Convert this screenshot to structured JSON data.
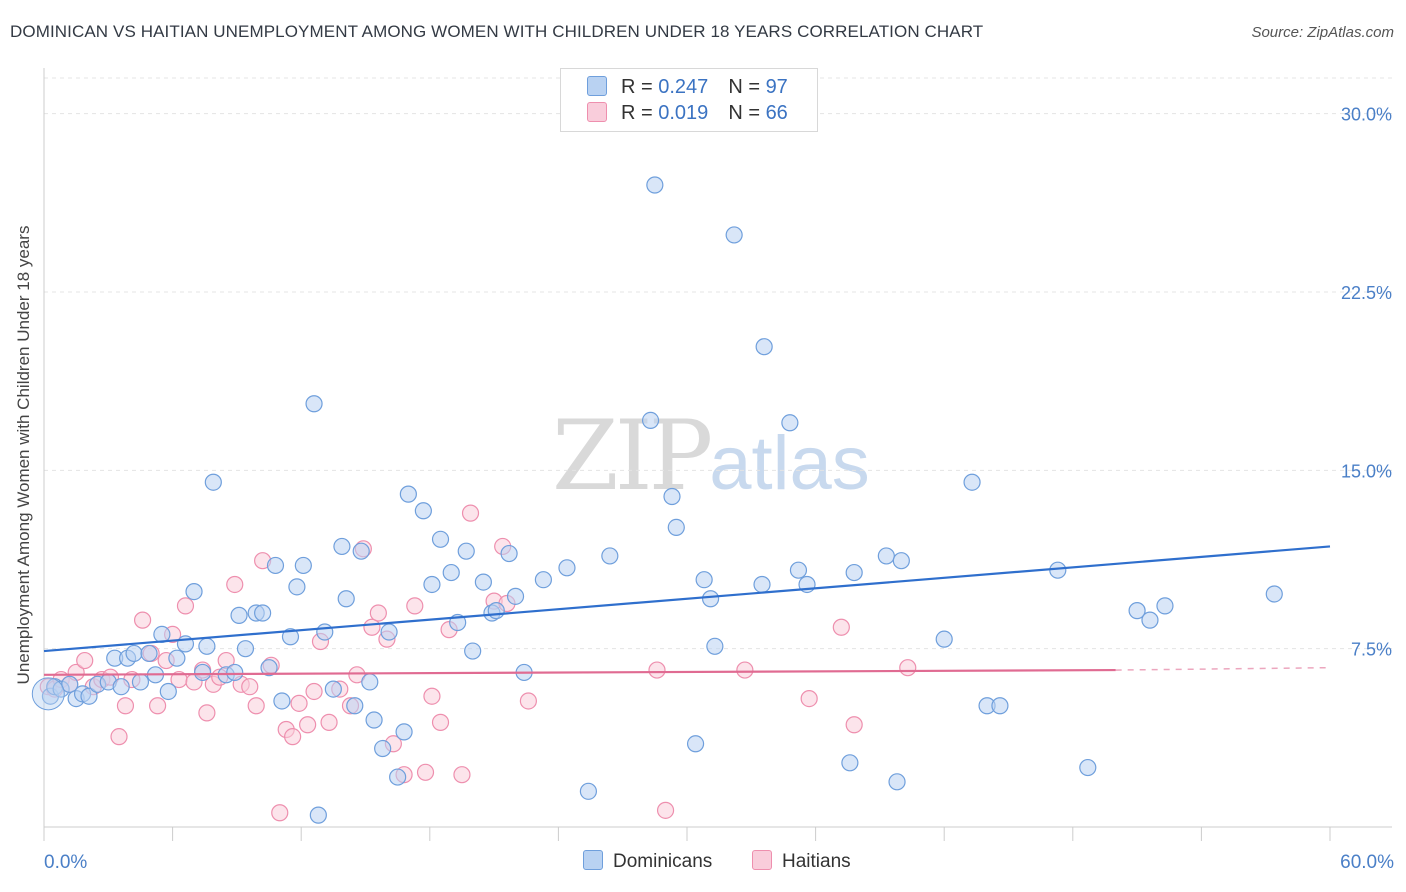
{
  "title": "DOMINICAN VS HAITIAN UNEMPLOYMENT AMONG WOMEN WITH CHILDREN UNDER 18 YEARS CORRELATION CHART",
  "source": "Source: ZipAtlas.com",
  "watermark": {
    "part1": "ZIP",
    "part2": "atlas"
  },
  "legend": {
    "rows": [
      {
        "r_label": "R = ",
        "r_value": "0.247",
        "n_label": "N = ",
        "n_value": "97",
        "color": "#a9c8ef"
      },
      {
        "r_label": "R = ",
        "r_value": "0.019",
        "n_label": "N = ",
        "n_value": "66",
        "color": "#f7b8cb"
      }
    ]
  },
  "bottom_legend": {
    "dominicans": "Dominicans",
    "haitians": "Haitians"
  },
  "chart_data": {
    "type": "scatter",
    "title": "DOMINICAN VS HAITIAN UNEMPLOYMENT AMONG WOMEN WITH CHILDREN UNDER 18 YEARS CORRELATION CHART",
    "xlabel": "",
    "ylabel": "Unemployment Among Women with Children Under 18 years",
    "xlim": [
      0,
      60
    ],
    "ylim": [
      0,
      31.5
    ],
    "x_tick_labels": [
      "0.0%",
      "60.0%"
    ],
    "y_ticks": [
      7.5,
      15.0,
      22.5,
      30.0
    ],
    "y_tick_labels": [
      "7.5%",
      "15.0%",
      "22.5%",
      "30.0%"
    ],
    "grid": true,
    "legend_position": "top-center",
    "colors": {
      "dominicans": "#6f9fdc",
      "dominicans_fill": "#b9d2f2",
      "haitians": "#ee8fae",
      "haitians_fill": "#f9cddb",
      "dom_line": "#2f6fcd",
      "hai_line": "#e06b92"
    },
    "series": [
      {
        "name": "Dominicans",
        "trend": {
          "x": [
            0,
            60
          ],
          "y": [
            7.4,
            11.8
          ]
        },
        "points": [
          [
            0.3,
            5.5
          ],
          [
            0.5,
            5.9
          ],
          [
            0.8,
            5.8
          ],
          [
            1.2,
            6.0
          ],
          [
            1.5,
            5.4
          ],
          [
            1.8,
            5.6
          ],
          [
            2.1,
            5.5
          ],
          [
            2.5,
            6.0
          ],
          [
            3.0,
            6.1
          ],
          [
            3.3,
            7.1
          ],
          [
            3.6,
            5.9
          ],
          [
            3.9,
            7.1
          ],
          [
            4.2,
            7.3
          ],
          [
            4.5,
            6.1
          ],
          [
            4.9,
            7.3
          ],
          [
            5.2,
            6.4
          ],
          [
            5.5,
            8.1
          ],
          [
            5.8,
            5.7
          ],
          [
            6.2,
            7.1
          ],
          [
            6.6,
            7.7
          ],
          [
            7.0,
            9.9
          ],
          [
            7.4,
            6.5
          ],
          [
            7.6,
            7.6
          ],
          [
            7.9,
            14.5
          ],
          [
            8.5,
            6.4
          ],
          [
            8.9,
            6.5
          ],
          [
            9.1,
            8.9
          ],
          [
            9.4,
            7.5
          ],
          [
            9.9,
            9.0
          ],
          [
            10.2,
            9.0
          ],
          [
            10.5,
            6.7
          ],
          [
            10.8,
            11.0
          ],
          [
            11.1,
            5.3
          ],
          [
            11.5,
            8.0
          ],
          [
            11.8,
            10.1
          ],
          [
            12.1,
            11.0
          ],
          [
            12.6,
            17.8
          ],
          [
            12.8,
            0.5
          ],
          [
            13.1,
            8.2
          ],
          [
            13.5,
            5.8
          ],
          [
            13.9,
            11.8
          ],
          [
            14.1,
            9.6
          ],
          [
            14.5,
            5.1
          ],
          [
            14.8,
            11.6
          ],
          [
            15.2,
            6.1
          ],
          [
            15.4,
            4.5
          ],
          [
            15.8,
            3.3
          ],
          [
            16.1,
            8.2
          ],
          [
            16.5,
            2.1
          ],
          [
            16.8,
            4.0
          ],
          [
            17.0,
            14.0
          ],
          [
            17.7,
            13.3
          ],
          [
            18.1,
            10.2
          ],
          [
            18.5,
            12.1
          ],
          [
            19.0,
            10.7
          ],
          [
            19.3,
            8.6
          ],
          [
            19.7,
            11.6
          ],
          [
            20.0,
            7.4
          ],
          [
            20.5,
            10.3
          ],
          [
            20.9,
            9.0
          ],
          [
            21.1,
            9.1
          ],
          [
            21.7,
            11.5
          ],
          [
            22.0,
            9.7
          ],
          [
            22.4,
            6.5
          ],
          [
            23.3,
            10.4
          ],
          [
            24.4,
            10.9
          ],
          [
            25.4,
            1.5
          ],
          [
            26.4,
            11.4
          ],
          [
            28.3,
            17.1
          ],
          [
            28.5,
            27.0
          ],
          [
            29.3,
            13.9
          ],
          [
            29.5,
            12.6
          ],
          [
            30.4,
            3.5
          ],
          [
            30.8,
            10.4
          ],
          [
            31.1,
            9.6
          ],
          [
            31.3,
            7.6
          ],
          [
            32.2,
            24.9
          ],
          [
            33.5,
            10.2
          ],
          [
            33.6,
            20.2
          ],
          [
            34.8,
            17.0
          ],
          [
            35.2,
            10.8
          ],
          [
            35.6,
            10.2
          ],
          [
            37.6,
            2.7
          ],
          [
            37.8,
            10.7
          ],
          [
            39.3,
            11.4
          ],
          [
            39.8,
            1.9
          ],
          [
            40.0,
            11.2
          ],
          [
            42.0,
            7.9
          ],
          [
            43.3,
            14.5
          ],
          [
            44.0,
            5.1
          ],
          [
            44.6,
            5.1
          ],
          [
            47.3,
            10.8
          ],
          [
            48.7,
            2.5
          ],
          [
            51.0,
            9.1
          ],
          [
            51.6,
            8.7
          ],
          [
            52.3,
            9.3
          ],
          [
            57.4,
            9.8
          ]
        ]
      },
      {
        "name": "Haitians",
        "trend": {
          "x": [
            0,
            50
          ],
          "y": [
            6.4,
            6.6
          ]
        },
        "trend_dashed": {
          "x": [
            50,
            60
          ],
          "y": [
            6.6,
            6.7
          ]
        },
        "points": [
          [
            0.2,
            5.9
          ],
          [
            0.5,
            5.8
          ],
          [
            0.8,
            6.2
          ],
          [
            1.2,
            6.0
          ],
          [
            1.5,
            6.5
          ],
          [
            1.9,
            7.0
          ],
          [
            2.3,
            5.9
          ],
          [
            2.7,
            6.2
          ],
          [
            3.1,
            6.3
          ],
          [
            3.5,
            3.8
          ],
          [
            3.8,
            5.1
          ],
          [
            4.1,
            6.2
          ],
          [
            4.6,
            8.7
          ],
          [
            5.0,
            7.3
          ],
          [
            5.3,
            5.1
          ],
          [
            5.7,
            7.0
          ],
          [
            6.0,
            8.1
          ],
          [
            6.3,
            6.2
          ],
          [
            6.6,
            9.3
          ],
          [
            7.0,
            6.1
          ],
          [
            7.4,
            6.6
          ],
          [
            7.6,
            4.8
          ],
          [
            7.9,
            6.0
          ],
          [
            8.2,
            6.3
          ],
          [
            8.5,
            7.0
          ],
          [
            8.9,
            10.2
          ],
          [
            9.2,
            6.0
          ],
          [
            9.6,
            5.9
          ],
          [
            9.9,
            5.1
          ],
          [
            10.2,
            11.2
          ],
          [
            10.6,
            6.8
          ],
          [
            11.0,
            0.6
          ],
          [
            11.3,
            4.1
          ],
          [
            11.6,
            3.8
          ],
          [
            11.9,
            5.2
          ],
          [
            12.3,
            4.3
          ],
          [
            12.6,
            5.7
          ],
          [
            12.9,
            7.8
          ],
          [
            13.3,
            4.4
          ],
          [
            13.8,
            5.8
          ],
          [
            14.3,
            5.1
          ],
          [
            14.6,
            6.4
          ],
          [
            14.9,
            11.7
          ],
          [
            15.3,
            8.4
          ],
          [
            15.6,
            9.0
          ],
          [
            16.0,
            7.9
          ],
          [
            16.3,
            3.5
          ],
          [
            16.8,
            2.2
          ],
          [
            17.3,
            9.3
          ],
          [
            17.8,
            2.3
          ],
          [
            18.1,
            5.5
          ],
          [
            18.5,
            4.4
          ],
          [
            18.9,
            8.3
          ],
          [
            19.5,
            2.2
          ],
          [
            19.9,
            13.2
          ],
          [
            21.0,
            9.5
          ],
          [
            21.4,
            11.8
          ],
          [
            21.6,
            9.4
          ],
          [
            22.6,
            5.3
          ],
          [
            28.6,
            6.6
          ],
          [
            29.0,
            0.7
          ],
          [
            32.7,
            6.6
          ],
          [
            35.7,
            5.4
          ],
          [
            37.2,
            8.4
          ],
          [
            37.8,
            4.3
          ],
          [
            40.3,
            6.7
          ]
        ]
      }
    ]
  }
}
